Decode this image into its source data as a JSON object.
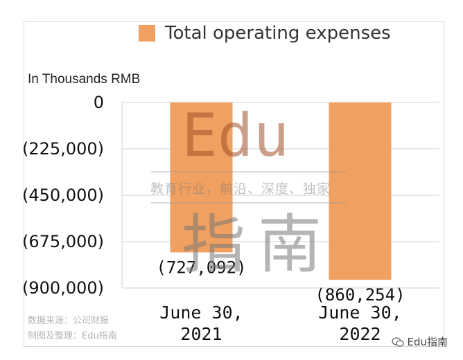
{
  "chart_data": {
    "type": "bar",
    "title": "",
    "ylabel": "In Thousands RMB",
    "xlabel": "",
    "categories": [
      "June 30, 2021",
      "June 30, 2022"
    ],
    "category_lines": [
      [
        "June 30,",
        "2021"
      ],
      [
        "June 30,",
        "2022"
      ]
    ],
    "series": [
      {
        "name": "Total operating expenses",
        "values": [
          -727092,
          -860254
        ],
        "labels": [
          "(727,092)",
          "(860,254)"
        ]
      }
    ],
    "ylim": [
      -900000,
      0
    ],
    "yticks": [
      0,
      -225000,
      -450000,
      -675000,
      -900000
    ],
    "ytick_labels": [
      "0",
      "(225,000)",
      "(450,000)",
      "(675,000)",
      "(900,000)"
    ],
    "grid": true,
    "legend": "top",
    "colors": {
      "bar": "#f0a060",
      "grid": "#d0d0d0",
      "text": "#111111"
    }
  },
  "footnotes": [
    "数据来源：公司财报",
    "制图及整理：Edu指南"
  ],
  "watermark": {
    "big_latin": "Edu",
    "big_cjk": "指南",
    "tagline": "教育行业，前沿、深度、独家"
  },
  "brand": {
    "label": "Edu指南",
    "icon": "wechat-icon"
  }
}
